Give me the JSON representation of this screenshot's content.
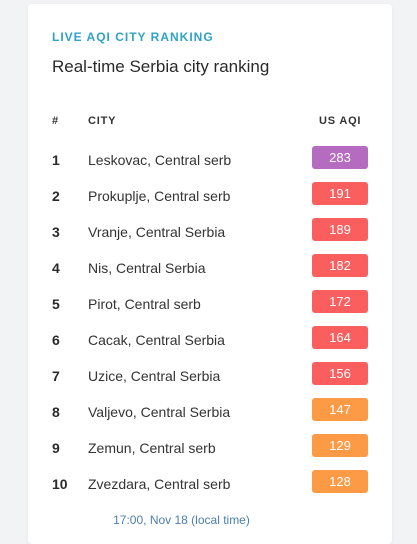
{
  "header": {
    "eyebrow": "LIVE AQI CITY RANKING",
    "title": "Real-time Serbia city ranking"
  },
  "table": {
    "columns": {
      "rank": "#",
      "city": "CITY",
      "aqi": "US AQI"
    },
    "rows": [
      {
        "rank": "1",
        "city": "Leskovac, Central serb",
        "aqi": "283",
        "color": "#b56bbf"
      },
      {
        "rank": "2",
        "city": "Prokuplje, Central serb",
        "aqi": "191",
        "color": "#fb5e5e"
      },
      {
        "rank": "3",
        "city": "Vranje, Central Serbia",
        "aqi": "189",
        "color": "#fb5e5e"
      },
      {
        "rank": "4",
        "city": "Nis, Central Serbia",
        "aqi": "182",
        "color": "#fb5e5e"
      },
      {
        "rank": "5",
        "city": "Pirot, Central serb",
        "aqi": "172",
        "color": "#fb5e5e"
      },
      {
        "rank": "6",
        "city": "Cacak, Central Serbia",
        "aqi": "164",
        "color": "#fb5e5e"
      },
      {
        "rank": "7",
        "city": "Uzice, Central Serbia",
        "aqi": "156",
        "color": "#fb5e5e"
      },
      {
        "rank": "8",
        "city": "Valjevo, Central Serbia",
        "aqi": "147",
        "color": "#fd9a45"
      },
      {
        "rank": "9",
        "city": "Zemun, Central serb",
        "aqi": "129",
        "color": "#fd9a45"
      },
      {
        "rank": "10",
        "city": "Zvezdara, Central serb",
        "aqi": "128",
        "color": "#fd9a45"
      }
    ]
  },
  "footer": {
    "timestamp": "17:00, Nov 18 (local time)"
  }
}
